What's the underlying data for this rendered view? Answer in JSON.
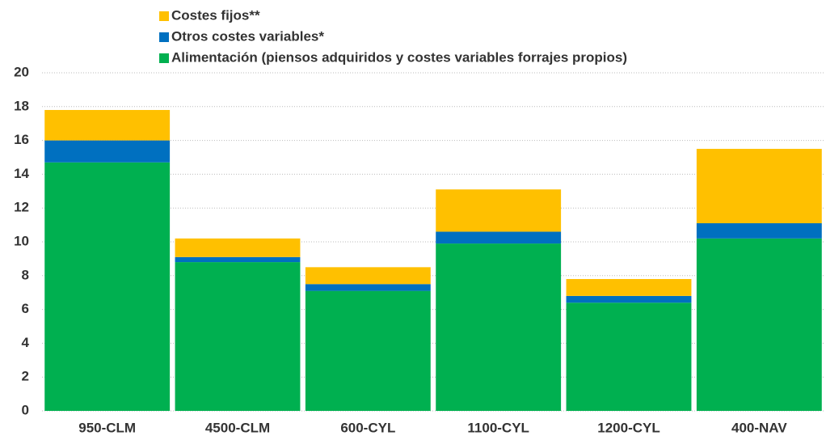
{
  "chart_data": {
    "type": "stacked_bar",
    "categories": [
      "950-CLM",
      "4500-CLM",
      "600-CYL",
      "1100-CYL",
      "1200-CYL",
      "400-NAV"
    ],
    "series": [
      {
        "name": "Alimentación (piensos adquiridos y costes variables forrajes propios)",
        "color": "#00b050",
        "values": [
          14.7,
          8.8,
          7.1,
          9.9,
          6.4,
          10.2
        ]
      },
      {
        "name": "Otros costes variables*",
        "color": "#0070c0",
        "values": [
          1.3,
          0.3,
          0.4,
          0.7,
          0.4,
          0.9
        ]
      },
      {
        "name": "Costes fijos**",
        "color": "#ffc000",
        "values": [
          1.8,
          1.1,
          1.0,
          2.5,
          1.0,
          4.4
        ]
      }
    ],
    "ylim": [
      0,
      20
    ],
    "yticks": [
      0,
      2,
      4,
      6,
      8,
      10,
      12,
      14,
      16,
      18,
      20
    ],
    "grid": true,
    "legend": "top"
  }
}
